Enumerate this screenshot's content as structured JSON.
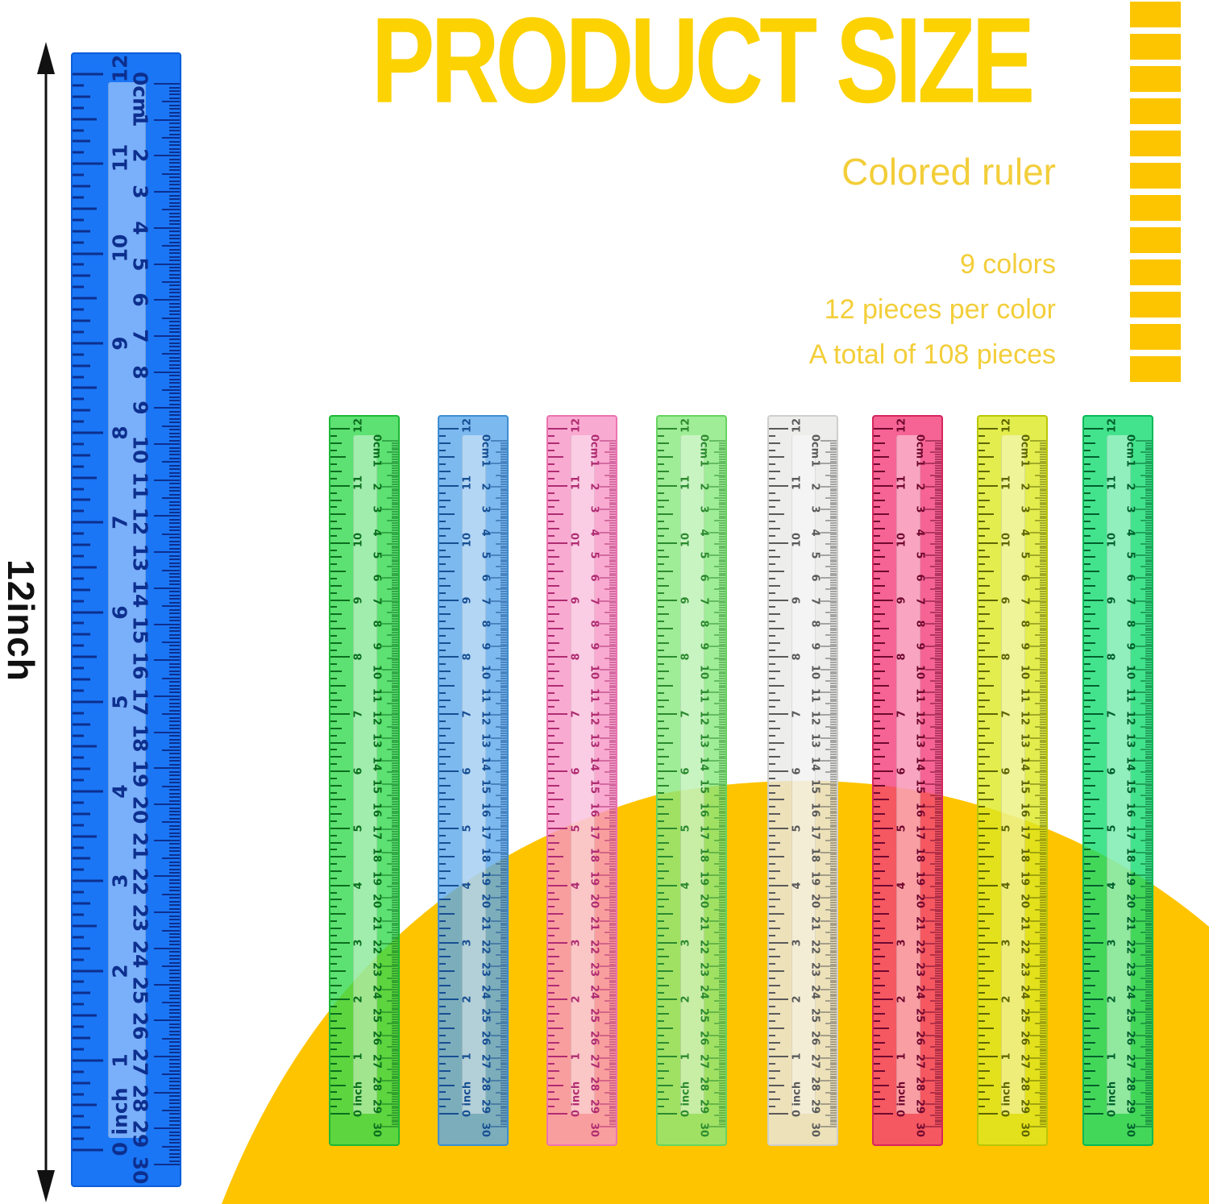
{
  "header": {
    "title": "PRODUCT SIZE",
    "subtitle": "Colored ruler",
    "info_lines": [
      "9 colors",
      "12 pieces per color",
      "A total of 108 pieces"
    ],
    "title_color": "#FCD202",
    "text_color": "#F3CE3A"
  },
  "dimension": {
    "label": "12inch"
  },
  "decor": {
    "dash_strip_color": "#FDC500",
    "dash_count": 12,
    "dome_color": "#FFC400"
  },
  "scales": {
    "inch_max": 12,
    "cm_max": 30,
    "inch_zero_label": "0 inch",
    "cm_zero_label": "0cm"
  },
  "rulers": {
    "main": {
      "color_name": "blue",
      "body": "#1A76F5",
      "tick": "#0D2F8E",
      "border": "#0C5ED8"
    },
    "small": [
      {
        "color_name": "green",
        "body": "#35D94F",
        "tick": "#0B6E1E",
        "border": "#1CB837"
      },
      {
        "color_name": "sky-blue",
        "body": "#5BA7EA",
        "tick": "#174F93",
        "border": "#3F8ED2"
      },
      {
        "color_name": "pink",
        "body": "#F795C5",
        "tick": "#B02C72",
        "border": "#EC74B0"
      },
      {
        "color_name": "light-green",
        "body": "#88E97D",
        "tick": "#2C8A2E",
        "border": "#66D45F"
      },
      {
        "color_name": "clear-white",
        "body": "#E9E9E7",
        "tick": "#5A5A5A",
        "border": "#CFCFCB"
      },
      {
        "color_name": "rose",
        "body": "#F23D79",
        "tick": "#70082F",
        "border": "#D6265E"
      },
      {
        "color_name": "chartreuse",
        "body": "#DCE822",
        "tick": "#5F6603",
        "border": "#BAC607"
      },
      {
        "color_name": "spring-green",
        "body": "#14DC70",
        "tick": "#00602C",
        "border": "#06B957"
      }
    ]
  }
}
